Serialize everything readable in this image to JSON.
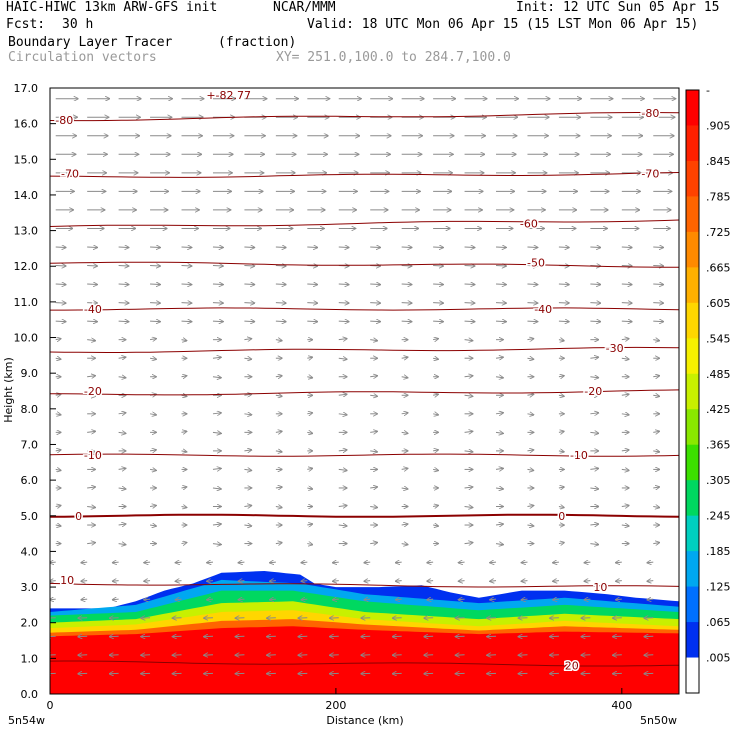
{
  "header": {
    "model": "HAIC-HIWC 13km ARW-GFS init",
    "org": "NCAR/MMM",
    "init": "Init: 12 UTC Sun 05 Apr 15",
    "fcst_label": "Fcst:",
    "fcst_value": "30 h",
    "valid": "Valid: 18 UTC Mon 06 Apr 15 (15 LST Mon 06 Apr 15)",
    "field": "Boundary Layer Tracer",
    "units": "(fraction)",
    "vectors": "Circulation vectors",
    "xy": "XY= 251.0,100.0 to 284.7,100.0"
  },
  "chart_data": {
    "type": "contour",
    "title": "Boundary Layer Tracer",
    "xlabel": "Distance (km)",
    "ylabel": "Height (km)",
    "xlim": [
      0,
      440
    ],
    "ylim": [
      0,
      17
    ],
    "xticks": [
      "0",
      "200",
      "400"
    ],
    "yticks": [
      "0.0",
      "1.0",
      "2.0",
      "3.0",
      "4.0",
      "5.0",
      "6.0",
      "7.0",
      "8.0",
      "9.0",
      "10.0",
      "11.0",
      "12.0",
      "13.0",
      "14.0",
      "15.0",
      "16.0",
      "17.0"
    ],
    "corner_left": "5n54w",
    "corner_right": "5n50w",
    "top_label": "-82.77",
    "colorbar": {
      "labels": [
        "-",
        ".905",
        ".845",
        ".785",
        ".725",
        ".665",
        ".605",
        ".545",
        ".485",
        ".425",
        ".365",
        ".305",
        ".245",
        ".185",
        ".125",
        ".065",
        ".005"
      ],
      "colors": [
        "#ff0000",
        "#ff2000",
        "#ff4200",
        "#ff6400",
        "#ff8a00",
        "#ffb000",
        "#ffd600",
        "#f6f000",
        "#c8f000",
        "#8ae800",
        "#3ce000",
        "#00d860",
        "#00d0c0",
        "#00a8f0",
        "#0070ff",
        "#0030f0",
        "#ffffff"
      ]
    },
    "temperature_contours": [
      {
        "label": "-80",
        "heights": [
          16.1,
          16.3
        ]
      },
      {
        "label": "-70",
        "heights": [
          14.5,
          14.6
        ]
      },
      {
        "label": "-60",
        "heights": [
          13.1,
          13.3
        ]
      },
      {
        "label": "-50",
        "heights": [
          12.1,
          12.0
        ]
      },
      {
        "label": "-40",
        "heights": [
          10.8,
          10.8
        ]
      },
      {
        "label": "-30",
        "heights": [
          9.6,
          9.7
        ]
      },
      {
        "label": "-20",
        "heights": [
          8.4,
          8.5
        ]
      },
      {
        "label": "-10",
        "heights": [
          6.7,
          6.7
        ]
      },
      {
        "label": "0",
        "heights": [
          5.0,
          5.0
        ]
      },
      {
        "label": "10",
        "heights": [
          3.1,
          3.0
        ]
      },
      {
        "label": "20",
        "heights": [
          0.9,
          0.8
        ]
      }
    ],
    "contour_labels": [
      {
        "text": "-80",
        "x": 10,
        "y": 16.1
      },
      {
        "text": "-80",
        "x": 420,
        "y": 16.3
      },
      {
        "text": "-70",
        "x": 14,
        "y": 14.6
      },
      {
        "text": "-70",
        "x": 420,
        "y": 14.6
      },
      {
        "text": "-60",
        "x": 335,
        "y": 13.2
      },
      {
        "text": "-50",
        "x": 340,
        "y": 12.1
      },
      {
        "text": "-40",
        "x": 30,
        "y": 10.8
      },
      {
        "text": "-40",
        "x": 345,
        "y": 10.8
      },
      {
        "text": "-30",
        "x": 395,
        "y": 9.7
      },
      {
        "text": "-20",
        "x": 30,
        "y": 8.5
      },
      {
        "text": "-20",
        "x": 380,
        "y": 8.5
      },
      {
        "text": "-10",
        "x": 30,
        "y": 6.7
      },
      {
        "text": "-10",
        "x": 370,
        "y": 6.7
      },
      {
        "text": "0",
        "x": 20,
        "y": 5.0
      },
      {
        "text": "0",
        "x": 358,
        "y": 5.0
      },
      {
        "text": "10",
        "x": 12,
        "y": 3.2
      },
      {
        "text": "10",
        "x": 385,
        "y": 3.0
      },
      {
        "text": "20",
        "x": 365,
        "y": 0.8
      }
    ],
    "tracer_top_km": [
      [
        0,
        2.4
      ],
      [
        40,
        2.4
      ],
      [
        60,
        2.6
      ],
      [
        80,
        2.9
      ],
      [
        100,
        3.1
      ],
      [
        120,
        3.4
      ],
      [
        150,
        3.45
      ],
      [
        175,
        3.35
      ],
      [
        185,
        3.1
      ],
      [
        200,
        3.0
      ],
      [
        230,
        3.0
      ],
      [
        260,
        3.05
      ],
      [
        280,
        2.85
      ],
      [
        300,
        2.7
      ],
      [
        330,
        2.9
      ],
      [
        360,
        2.9
      ],
      [
        390,
        2.8
      ],
      [
        410,
        2.7
      ],
      [
        440,
        2.6
      ]
    ],
    "tracer_levels_km": [
      {
        "value": ".065",
        "points": [
          [
            0,
            2.3
          ],
          [
            60,
            2.5
          ],
          [
            120,
            3.2
          ],
          [
            175,
            3.1
          ],
          [
            220,
            2.8
          ],
          [
            300,
            2.55
          ],
          [
            360,
            2.7
          ],
          [
            440,
            2.45
          ]
        ]
      },
      {
        "value": ".185",
        "points": [
          [
            0,
            2.2
          ],
          [
            60,
            2.3
          ],
          [
            120,
            2.9
          ],
          [
            170,
            2.9
          ],
          [
            220,
            2.6
          ],
          [
            300,
            2.35
          ],
          [
            360,
            2.5
          ],
          [
            440,
            2.3
          ]
        ]
      },
      {
        "value": ".365",
        "points": [
          [
            0,
            2.0
          ],
          [
            60,
            2.1
          ],
          [
            120,
            2.55
          ],
          [
            170,
            2.6
          ],
          [
            220,
            2.3
          ],
          [
            300,
            2.1
          ],
          [
            360,
            2.25
          ],
          [
            440,
            2.1
          ]
        ]
      },
      {
        "value": ".545",
        "points": [
          [
            0,
            1.85
          ],
          [
            60,
            1.95
          ],
          [
            120,
            2.3
          ],
          [
            170,
            2.35
          ],
          [
            220,
            2.1
          ],
          [
            300,
            1.9
          ],
          [
            360,
            2.05
          ],
          [
            440,
            1.9
          ]
        ]
      },
      {
        "value": ".725",
        "points": [
          [
            0,
            1.72
          ],
          [
            60,
            1.8
          ],
          [
            120,
            2.05
          ],
          [
            170,
            2.1
          ],
          [
            220,
            1.95
          ],
          [
            300,
            1.78
          ],
          [
            360,
            1.9
          ],
          [
            440,
            1.8
          ]
        ]
      },
      {
        "value": ".905",
        "points": [
          [
            0,
            1.62
          ],
          [
            60,
            1.68
          ],
          [
            120,
            1.85
          ],
          [
            170,
            1.9
          ],
          [
            220,
            1.8
          ],
          [
            300,
            1.68
          ],
          [
            360,
            1.75
          ],
          [
            440,
            1.7
          ]
        ]
      }
    ]
  }
}
